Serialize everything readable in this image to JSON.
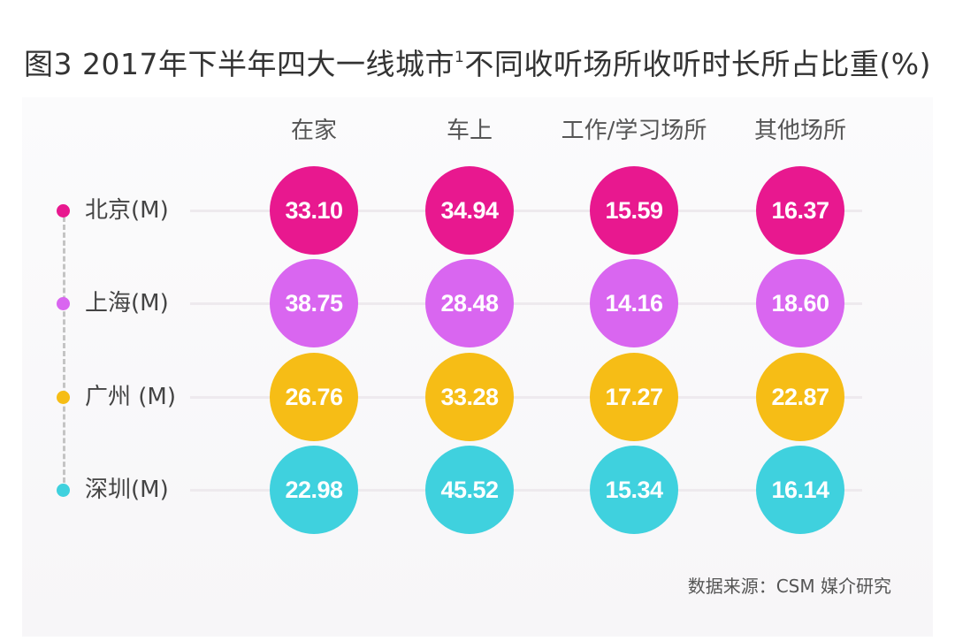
{
  "title": {
    "text": "图3 2017年下半年四大一线城市",
    "superscript": "1",
    "text_after": "不同收听场所收听时长所占比重(%)"
  },
  "source": "数据来源：CSM 媒介研究",
  "chart_data": {
    "type": "table",
    "categories": [
      "在家",
      "车上",
      "工作/学习场所",
      "其他场所"
    ],
    "rows": [
      {
        "name": "北京(M)",
        "color": "#e8188f",
        "values": [
          "33.10",
          "34.94",
          "15.59",
          "16.37"
        ]
      },
      {
        "name": "上海(M)",
        "color": "#d966f0",
        "values": [
          "38.75",
          "28.48",
          "14.16",
          "18.60"
        ]
      },
      {
        "name": "广州 (M)",
        "color": "#f6bd16",
        "values": [
          "26.76",
          "33.28",
          "17.27",
          "22.87"
        ]
      },
      {
        "name": "深圳(M)",
        "color": "#3fd1de",
        "values": [
          "22.98",
          "45.52",
          "15.34",
          "16.14"
        ]
      }
    ]
  }
}
